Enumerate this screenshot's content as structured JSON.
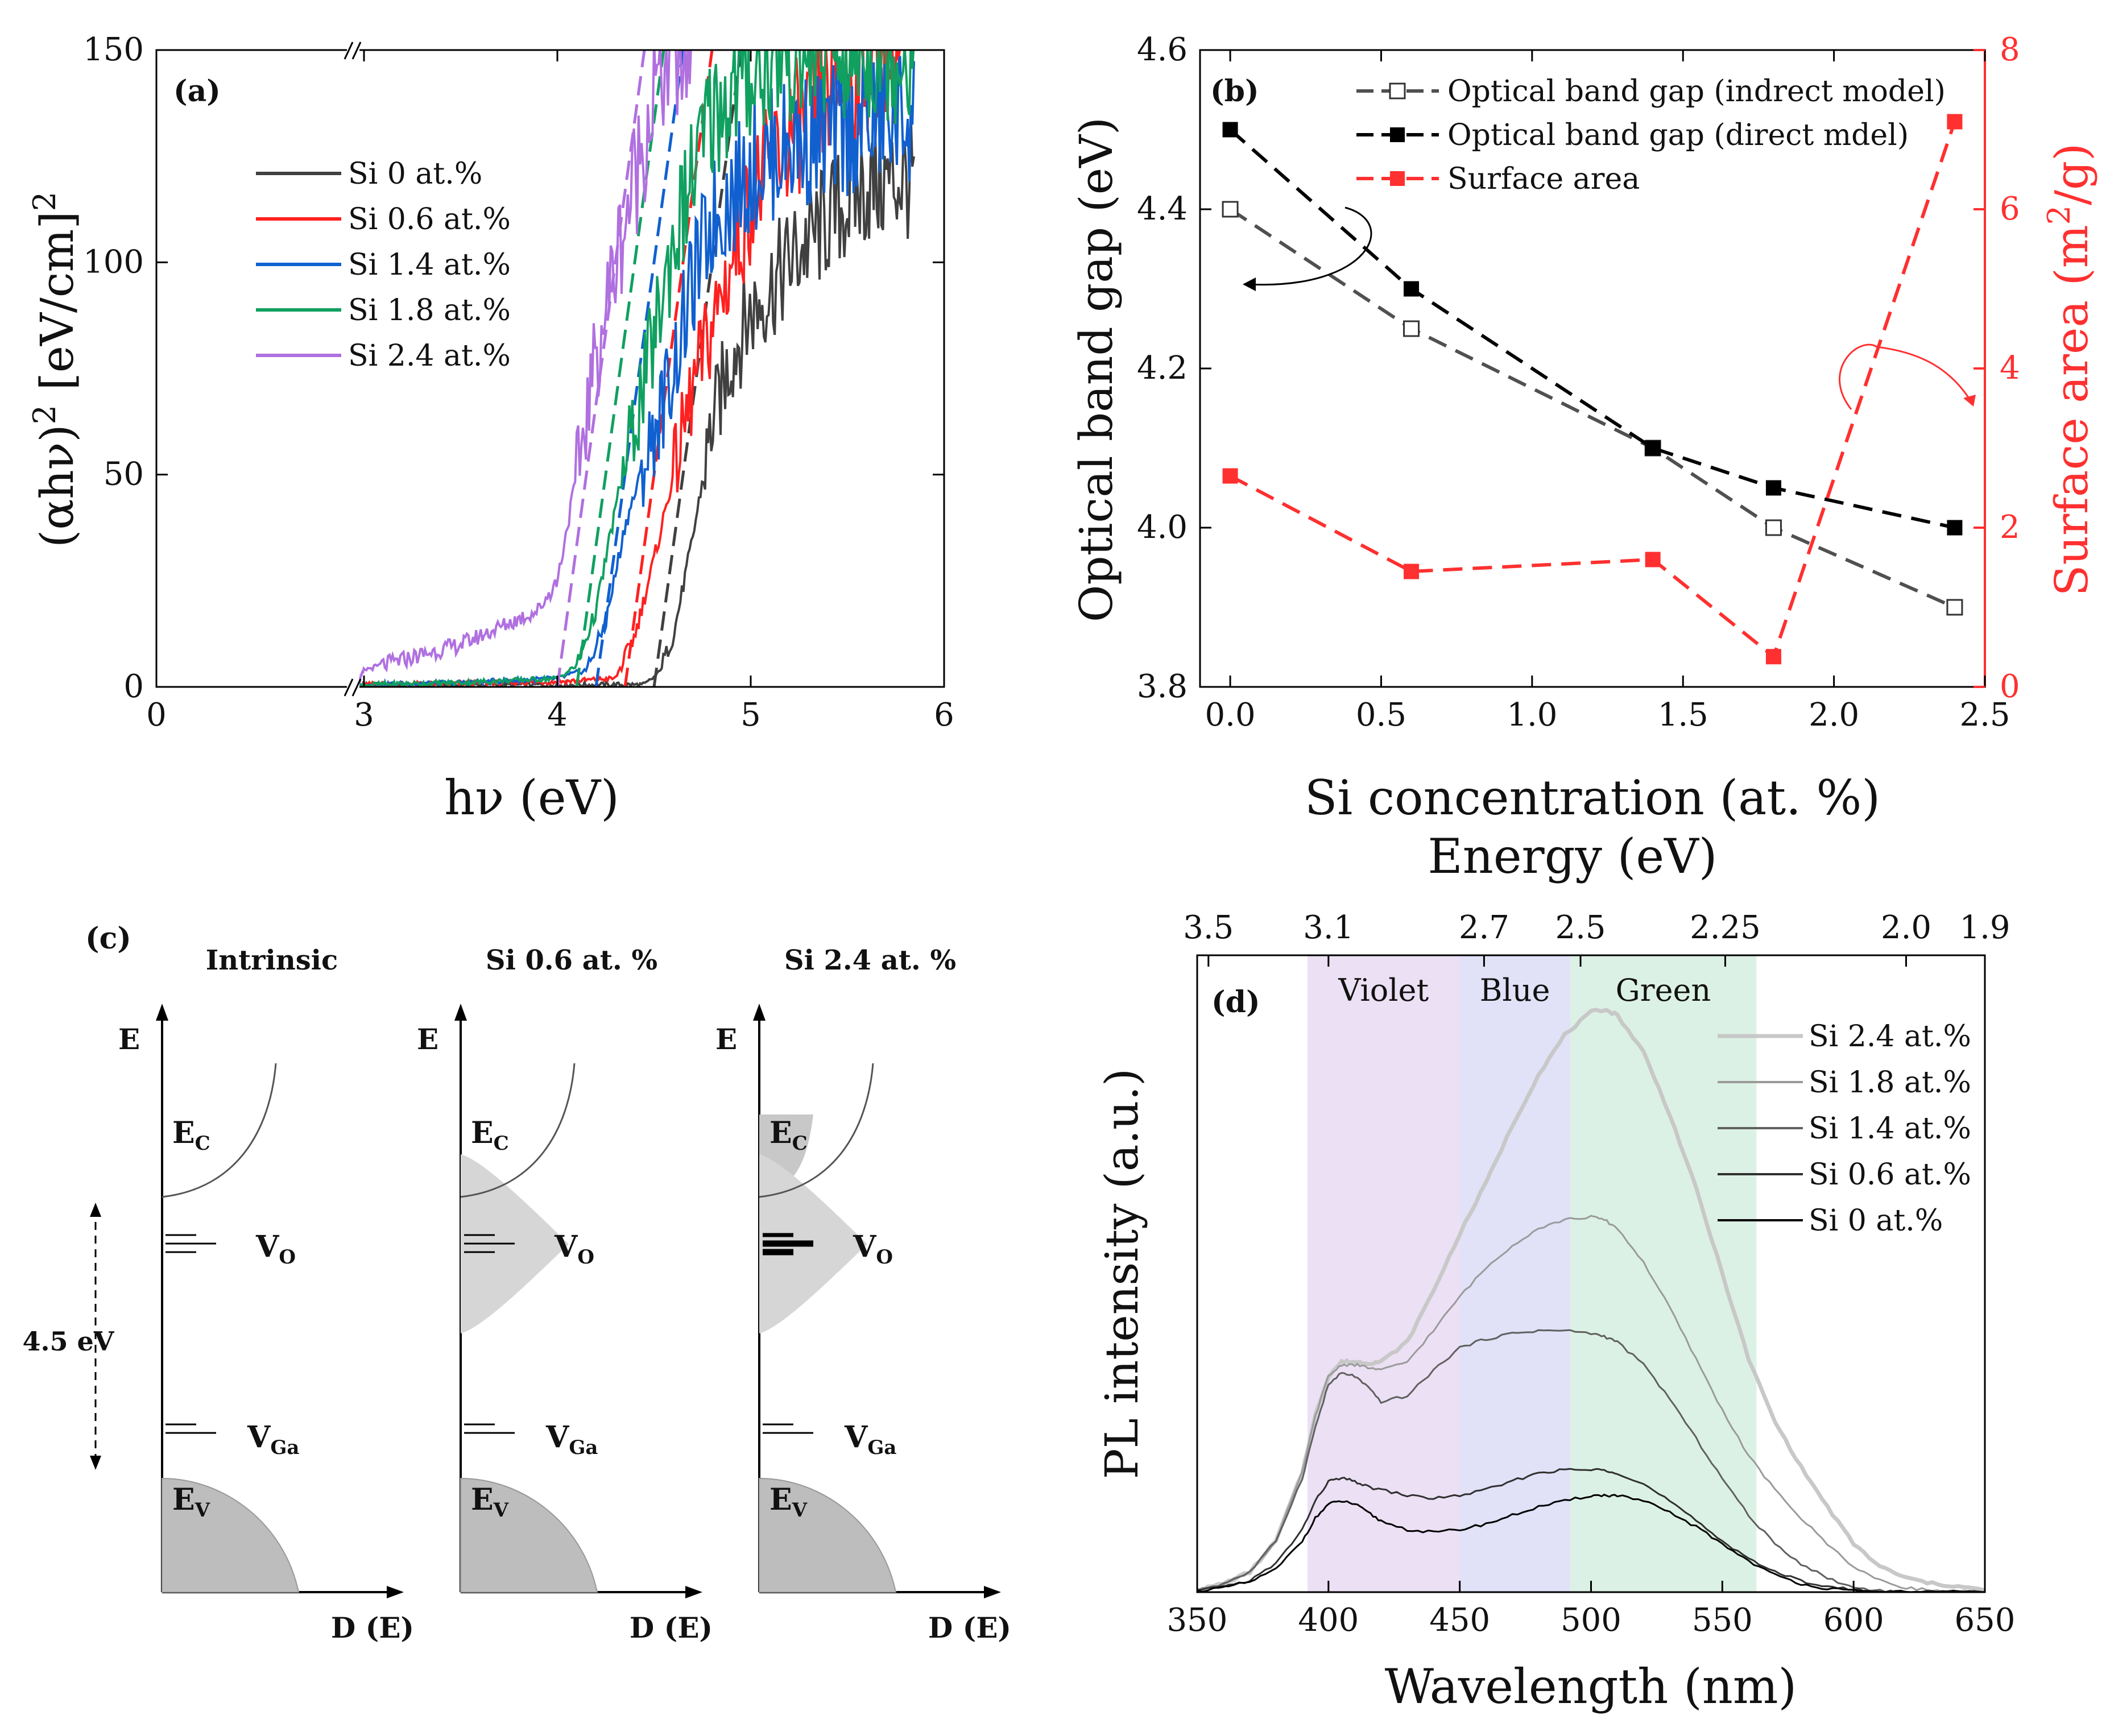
{
  "chart_data": [
    {
      "panel": "a",
      "type": "line",
      "panel_label": "(a)",
      "xlabel": "hν (eV)",
      "ylabel_main": "(αhν)",
      "ylabel_sup": "2",
      "ylabel_unit": " [eV/cm]",
      "ylabel_unit_sup": "2",
      "x_axis_break": true,
      "xlim": [
        0,
        6
      ],
      "ylim": [
        0,
        150
      ],
      "xticks": [
        "0",
        "3",
        "4",
        "5",
        "6"
      ],
      "yticks": [
        "0",
        "50",
        "100",
        "150"
      ],
      "series": [
        {
          "name": "Si 0 at.%",
          "color": "#404040",
          "onset": 4.5,
          "x": [
            2.9,
            3.0,
            3.5,
            4.0,
            4.45,
            4.52,
            4.6,
            4.7,
            4.8,
            4.9,
            5.0,
            5.2,
            5.4,
            5.6,
            5.85
          ],
          "y": [
            0,
            0.5,
            0.5,
            0.5,
            0.5,
            3,
            12,
            35,
            62,
            78,
            88,
            100,
            110,
            118,
            120
          ]
        },
        {
          "name": "Si 0.6 at.%",
          "color": "#ff2020",
          "onset": 4.35,
          "x": [
            2.9,
            3.0,
            3.5,
            4.0,
            4.3,
            4.4,
            4.5,
            4.6,
            4.7,
            4.8,
            4.9,
            5.0,
            5.2,
            5.4,
            5.6,
            5.85
          ],
          "y": [
            0,
            0.5,
            0.8,
            1.2,
            2,
            12,
            30,
            50,
            70,
            85,
            100,
            115,
            130,
            140,
            148,
            150
          ]
        },
        {
          "name": "Si 1.4 at.%",
          "color": "#1060d0",
          "onset": 4.2,
          "x": [
            2.9,
            3.0,
            3.5,
            4.0,
            4.15,
            4.25,
            4.35,
            4.5,
            4.6,
            4.7,
            4.8,
            5.0,
            5.2,
            5.4,
            5.6,
            5.85
          ],
          "y": [
            0,
            0.5,
            1,
            2,
            4,
            15,
            38,
            60,
            75,
            95,
            110,
            122,
            128,
            130,
            133,
            135
          ]
        },
        {
          "name": "Si 1.8 at.%",
          "color": "#10a060",
          "onset": 4.1,
          "x": [
            2.9,
            3.0,
            3.5,
            4.0,
            4.1,
            4.2,
            4.3,
            4.4,
            4.5,
            4.6,
            4.7,
            4.8,
            5.0,
            5.2,
            5.4,
            5.6,
            5.85
          ],
          "y": [
            0,
            0.5,
            1,
            2,
            5,
            18,
            42,
            62,
            82,
            105,
            120,
            135,
            145,
            150,
            150,
            150,
            150
          ]
        },
        {
          "name": "Si 2.4 at.%",
          "color": "#b070e0",
          "onset": 4.0,
          "x": [
            2.9,
            3.0,
            3.5,
            3.9,
            4.0,
            4.1,
            4.2,
            4.3,
            4.4,
            4.5,
            4.6,
            4.7
          ],
          "y": [
            0,
            4,
            10,
            18,
            25,
            50,
            78,
            100,
            120,
            140,
            150,
            150
          ]
        }
      ]
    },
    {
      "panel": "b",
      "type": "line",
      "panel_label": "(b)",
      "xlabel": "Si concentration (at. %)",
      "ylabel": "Optical band gap (eV)",
      "ylabel_right": "Surface area (m²/g)",
      "ylabel_right_main": "Surface area (m",
      "ylabel_right_sup": "2",
      "ylabel_right_tail": "/g)",
      "xlim": [
        -0.1,
        2.5
      ],
      "ylim": [
        3.8,
        4.6
      ],
      "ylim_right": [
        0,
        8
      ],
      "xticks": [
        "0.0",
        "0.5",
        "1.0",
        "1.5",
        "2.0",
        "2.5"
      ],
      "yticks": [
        "3.8",
        "4.0",
        "4.2",
        "4.4",
        "4.6"
      ],
      "yticks_right": [
        "0",
        "2",
        "4",
        "6",
        "8"
      ],
      "x": [
        0,
        0.6,
        1.4,
        1.8,
        2.4
      ],
      "series": [
        {
          "name": "Optical band gap (indrect model)",
          "axis": "left",
          "color": "#505050",
          "marker": "open-square",
          "values": [
            4.4,
            4.25,
            4.1,
            4.0,
            3.9
          ]
        },
        {
          "name": "Optical band gap (direct mdel)",
          "axis": "left",
          "color": "#000000",
          "marker": "filled-square",
          "values": [
            4.5,
            4.3,
            4.1,
            4.05,
            4.0
          ]
        },
        {
          "name": "Surface area",
          "axis": "right",
          "color": "#ff3030",
          "marker": "filled-square",
          "values": [
            2.65,
            1.45,
            1.6,
            0.38,
            7.1
          ]
        }
      ]
    },
    {
      "panel": "c",
      "type": "diagram",
      "panel_label": "(c)",
      "gap_label": "4.5 eV",
      "energy_axis": "E",
      "dos_axis": "D (E)",
      "conduction_band": "E",
      "conduction_sub": "C",
      "valence_band": "E",
      "valence_sub": "V",
      "vo_main": "V",
      "vo_sub": "O",
      "vga_main": "V",
      "vga_sub": "Ga",
      "columns": [
        {
          "title": "Intrinsic"
        },
        {
          "title": "Si 0.6 at. %"
        },
        {
          "title": "Si 2.4 at. %"
        }
      ]
    },
    {
      "panel": "d",
      "type": "line",
      "panel_label": "(d)",
      "xlabel": "Wavelength (nm)",
      "xlabel_top": "Energy (eV)",
      "ylabel": "PL intensity (a.u.)",
      "xlim": [
        350,
        650
      ],
      "xticks": [
        "350",
        "400",
        "450",
        "500",
        "550",
        "600",
        "650"
      ],
      "xticks_top": [
        "3.5",
        "3.1",
        "2.7",
        "2.5",
        "2.25",
        "2.0",
        "1.9"
      ],
      "regions": [
        {
          "label": "Violet",
          "from": 392,
          "to": 450,
          "color": "#e7daf2"
        },
        {
          "label": "Blue",
          "from": 450,
          "to": 492,
          "color": "#dcdcf6"
        },
        {
          "label": "Green",
          "from": 492,
          "to": 563,
          "color": "#d6efe0"
        }
      ],
      "x": [
        350,
        360,
        370,
        380,
        390,
        395,
        400,
        405,
        410,
        415,
        420,
        430,
        440,
        450,
        460,
        470,
        480,
        490,
        500,
        505,
        510,
        520,
        530,
        540,
        550,
        560,
        570,
        580,
        590,
        600,
        610,
        620,
        630,
        640,
        650
      ],
      "series": [
        {
          "name": "Si 2.4 at.%",
          "color": "#c8c8c8",
          "values": [
            0.3,
            1.5,
            3.5,
            9,
            21,
            31,
            38,
            40.5,
            40.5,
            40.3,
            40.5,
            44,
            53,
            63,
            72,
            82,
            91,
            98,
            102,
            102.5,
            101.5,
            95,
            84,
            71,
            56,
            41,
            30,
            22,
            15,
            8.5,
            4.5,
            2.5,
            1.5,
            1,
            0.3
          ]
        },
        {
          "name": "Si 1.8 at.%",
          "color": "#9a9a9a",
          "values": [
            0.3,
            1.5,
            3.5,
            9,
            21,
            31,
            38,
            40,
            40,
            39.5,
            39,
            40.5,
            46,
            52,
            57,
            61,
            64,
            65.5,
            66,
            65.5,
            64,
            58,
            50,
            41,
            32,
            24,
            18,
            13,
            8.5,
            4.5,
            2,
            0.8,
            0.3,
            0.1,
            0
          ]
        },
        {
          "name": "Si 1.4 at.%",
          "color": "#606060",
          "values": [
            0.3,
            1.5,
            3.5,
            9,
            20,
            29,
            36.5,
            38.5,
            38,
            36,
            33.5,
            34.5,
            39,
            43,
            44.5,
            45.5,
            46,
            46,
            45.5,
            45,
            44,
            40,
            34,
            27,
            20,
            13.5,
            8.5,
            5,
            2.5,
            0.8,
            0.3,
            0,
            0,
            0,
            0
          ]
        },
        {
          "name": "Si 0.6 at.%",
          "color": "#303030",
          "values": [
            0.2,
            1,
            2,
            5,
            11,
            16,
            19.5,
            20,
            19.5,
            18.5,
            18,
            17,
            16.5,
            17,
            18,
            19.5,
            21,
            21.5,
            21.5,
            21.5,
            21,
            19,
            16,
            12.5,
            9,
            6,
            3.5,
            2,
            1,
            0.4,
            0.1,
            0,
            0,
            0,
            0
          ]
        },
        {
          "name": "Si 0 at.%",
          "color": "#000000",
          "values": [
            0.2,
            0.8,
            1.8,
            4,
            9,
            13,
            15.5,
            16,
            15.5,
            14,
            12.5,
            11,
            10.5,
            11,
            12,
            13.5,
            15,
            16,
            17,
            17,
            17,
            16,
            14,
            11.5,
            8.5,
            5.5,
            3,
            1.5,
            0.6,
            0.2,
            0,
            0,
            0,
            0,
            0
          ]
        }
      ]
    }
  ]
}
